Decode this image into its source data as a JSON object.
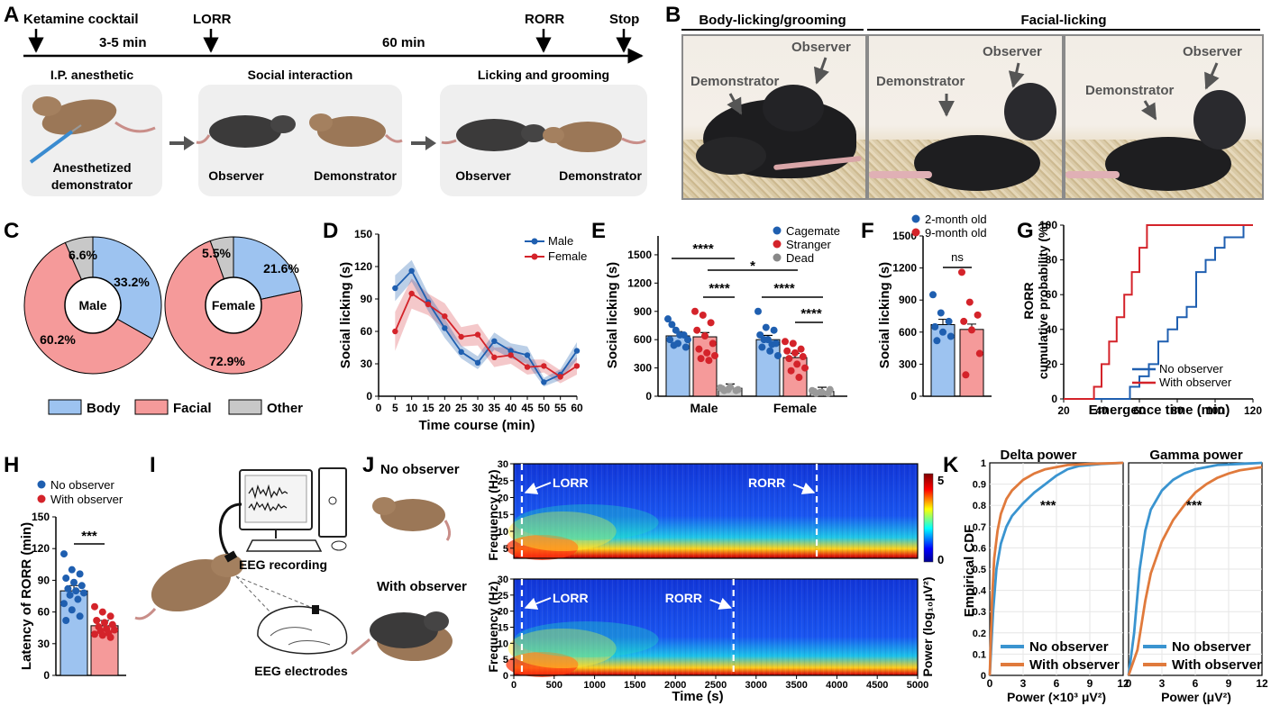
{
  "panels": {
    "A": {
      "letter": "A",
      "events": [
        "Ketamine cocktail",
        "LORR",
        "RORR",
        "Stop"
      ],
      "durations": [
        "3-5 min",
        "60 min"
      ],
      "boxes": [
        {
          "title": "I.P. anesthetic",
          "captions": [
            "Anesthetized",
            "demonstrator"
          ]
        },
        {
          "title": "Social interaction",
          "captions": [
            "Observer",
            "Demonstrator"
          ]
        },
        {
          "title": "Licking and grooming",
          "captions": [
            "Observer",
            "Demonstrator"
          ]
        }
      ]
    },
    "B": {
      "letter": "B",
      "headers": [
        "Body-licking/grooming",
        "Facial-licking"
      ],
      "labels": [
        "Demonstrator",
        "Observer"
      ]
    },
    "C": {
      "letter": "C",
      "donuts": [
        {
          "center": "Male",
          "pct": [
            "33.2%",
            "60.2%",
            "6.6%"
          ]
        },
        {
          "center": "Female",
          "pct": [
            "21.6%",
            "72.9%",
            "5.5%"
          ]
        }
      ],
      "legend": [
        "Body",
        "Facial",
        "Other"
      ]
    },
    "D": {
      "letter": "D",
      "ylabel": "Social licking (s)",
      "xlabel": "Time course (min)",
      "legend": [
        "Male",
        "Female"
      ]
    },
    "E": {
      "letter": "E",
      "ylabel": "Social licking (s)",
      "groups": [
        "Male",
        "Female"
      ],
      "legend": [
        "Cagemate",
        "Stranger",
        "Dead"
      ],
      "sig": [
        "****",
        "****",
        "*",
        "****",
        "****"
      ]
    },
    "F": {
      "letter": "F",
      "ylabel": "Social licking (s)",
      "legend": [
        "2-month old",
        "9-month old"
      ],
      "sig": "ns"
    },
    "G": {
      "letter": "G",
      "ylabel": [
        "RORR",
        "cumulative probability (%)"
      ],
      "xlabel": "Emergence time (min)",
      "legend": [
        "No observer",
        "With observer"
      ]
    },
    "H": {
      "letter": "H",
      "ylabel": "Latency of RORR (min)",
      "legend": [
        "No observer",
        "With observer"
      ],
      "sig": "***"
    },
    "I": {
      "letter": "I",
      "labels": [
        "EEG recording",
        "EEG electrodes"
      ]
    },
    "J": {
      "letter": "J",
      "rows": [
        "No observer",
        "With observer"
      ],
      "ylabel": "Frequency (Hz)",
      "xlabel": "Time (s)",
      "cbar_label": "Power (log₁₀μV²)",
      "cbar_ticks": [
        "5",
        "0"
      ],
      "markers": [
        "LORR",
        "RORR"
      ]
    },
    "K": {
      "letter": "K",
      "titles": [
        "Delta power",
        "Gamma power"
      ],
      "ylabel": "Empirical CDF",
      "xlabels": [
        "Power (×10³ μV²)",
        "Power (μV²)"
      ],
      "legend": [
        "No observer",
        "With observer"
      ],
      "sig": "***"
    }
  },
  "colors": {
    "blue": "#1f5fb0",
    "red": "#d4232a",
    "lightblue": "#9dc3f0",
    "lightred": "#f59a9a",
    "grey": "#c8c8c8",
    "k_blue": "#3a94d0",
    "k_orange": "#e07a3c"
  },
  "chart_data": [
    {
      "panel": "C",
      "type": "pie",
      "title": "Male",
      "categories": [
        "Body",
        "Facial",
        "Other"
      ],
      "values": [
        33.2,
        60.2,
        6.6
      ]
    },
    {
      "panel": "C",
      "type": "pie",
      "title": "Female",
      "categories": [
        "Body",
        "Facial",
        "Other"
      ],
      "values": [
        21.6,
        72.9,
        5.5
      ]
    },
    {
      "panel": "D",
      "type": "line",
      "xlabel": "Time course (min)",
      "ylabel": "Social licking (s)",
      "x": [
        5,
        10,
        15,
        20,
        25,
        30,
        35,
        40,
        45,
        50,
        55,
        60
      ],
      "ylim": [
        0,
        150
      ],
      "xticks": [
        "0",
        "5",
        "10",
        "15",
        "20",
        "25",
        "30",
        "35",
        "40",
        "45",
        "50",
        "55",
        "60"
      ],
      "yticks": [
        "0",
        "30",
        "60",
        "90",
        "120",
        "150"
      ],
      "series": [
        {
          "name": "Male",
          "values": [
            100,
            116,
            87,
            63,
            41,
            31,
            51,
            42,
            38,
            13,
            20,
            42
          ]
        },
        {
          "name": "Female",
          "values": [
            60,
            95,
            85,
            74,
            55,
            57,
            36,
            38,
            27,
            28,
            18,
            28
          ]
        }
      ]
    },
    {
      "panel": "E",
      "type": "bar",
      "ylabel": "Social licking (s)",
      "categories": [
        "Male",
        "Female"
      ],
      "ylim": [
        0,
        1700
      ],
      "yticks": [
        "0",
        "300",
        "600",
        "900",
        "1200",
        "1500"
      ],
      "series": [
        {
          "name": "Cagemate",
          "values": [
            640,
            600
          ]
        },
        {
          "name": "Stranger",
          "values": [
            630,
            410
          ]
        },
        {
          "name": "Dead",
          "values": [
            85,
            50
          ]
        }
      ]
    },
    {
      "panel": "F",
      "type": "bar",
      "ylabel": "Social licking (s)",
      "categories": [
        "2-month old",
        "9-month old"
      ],
      "ylim": [
        0,
        1500
      ],
      "yticks": [
        "0",
        "300",
        "600",
        "900",
        "1200",
        "1500"
      ],
      "values": [
        670,
        625
      ]
    },
    {
      "panel": "G",
      "type": "line",
      "xlabel": "Emergence time (min)",
      "ylabel": "RORR cumulative probability (%)",
      "xlim": [
        20,
        120
      ],
      "ylim": [
        0,
        100
      ],
      "xticks": [
        "20",
        "40",
        "60",
        "80",
        "100",
        "120"
      ],
      "yticks": [
        "0",
        "20",
        "40",
        "60",
        "80",
        "100"
      ],
      "series": [
        {
          "name": "No observer",
          "x": [
            20,
            50,
            55,
            60,
            65,
            70,
            75,
            80,
            85,
            90,
            95,
            100,
            105,
            110,
            115,
            120
          ],
          "values": [
            0,
            0,
            7,
            13,
            20,
            33,
            40,
            47,
            53,
            73,
            80,
            87,
            93,
            93,
            100,
            100
          ]
        },
        {
          "name": "With observer",
          "x": [
            20,
            36,
            40,
            44,
            48,
            52,
            56,
            60,
            64,
            120
          ],
          "values": [
            0,
            7,
            20,
            33,
            47,
            60,
            73,
            87,
            100,
            100
          ]
        }
      ]
    },
    {
      "panel": "H",
      "type": "bar",
      "ylabel": "Latency of RORR (min)",
      "categories": [
        "No observer",
        "With observer"
      ],
      "ylim": [
        0,
        150
      ],
      "yticks": [
        "0",
        "30",
        "60",
        "90",
        "120",
        "150"
      ],
      "values": [
        80,
        47
      ]
    },
    {
      "panel": "J",
      "type": "heatmap",
      "xlabel": "Time (s)",
      "ylabel": "Frequency (Hz)",
      "xlim": [
        0,
        5000
      ],
      "ylim": [
        0,
        30
      ],
      "xticks": [
        "0",
        "500",
        "1000",
        "1500",
        "2000",
        "2500",
        "3000",
        "3500",
        "4000",
        "4500",
        "5000"
      ],
      "yticks": [
        "5",
        "10",
        "15",
        "20",
        "25",
        "30"
      ],
      "yticks_bottom": [
        "0",
        "5",
        "10",
        "15",
        "20",
        "25",
        "30"
      ],
      "colorbar": [
        0,
        5
      ],
      "rows": [
        {
          "name": "No observer",
          "LORR": 100,
          "RORR": 3750
        },
        {
          "name": "With observer",
          "LORR": 100,
          "RORR": 2720
        }
      ]
    },
    {
      "panel": "K",
      "type": "line",
      "title": "Delta power",
      "xlabel": "Power (×10³ μV²)",
      "ylabel": "Empirical CDF",
      "xlim": [
        0,
        12
      ],
      "ylim": [
        0,
        1
      ],
      "xticks": [
        "0",
        "3",
        "6",
        "9",
        "12"
      ],
      "yticks": [
        "0",
        "0.1",
        "0.2",
        "0.3",
        "0.4",
        "0.5",
        "0.6",
        "0.7",
        "0.8",
        "0.9",
        "1"
      ],
      "series": [
        {
          "name": "No observer",
          "x": [
            0,
            0.3,
            0.6,
            1,
            1.5,
            2,
            3,
            4,
            5,
            6,
            7,
            8,
            9,
            10,
            12
          ],
          "values": [
            0,
            0.3,
            0.5,
            0.62,
            0.7,
            0.75,
            0.81,
            0.86,
            0.9,
            0.94,
            0.97,
            0.985,
            0.99,
            0.995,
            1
          ]
        },
        {
          "name": "With observer",
          "x": [
            0,
            0.2,
            0.4,
            0.7,
            1,
            1.5,
            2,
            3,
            4,
            5,
            6,
            7,
            9,
            12
          ],
          "values": [
            0,
            0.35,
            0.55,
            0.68,
            0.76,
            0.83,
            0.87,
            0.92,
            0.95,
            0.97,
            0.98,
            0.99,
            0.995,
            1
          ]
        }
      ]
    },
    {
      "panel": "K",
      "type": "line",
      "title": "Gamma power",
      "xlabel": "Power (μV²)",
      "ylabel": "Empirical CDF",
      "xlim": [
        0,
        12
      ],
      "ylim": [
        0,
        1
      ],
      "xticks": [
        "0",
        "3",
        "6",
        "9",
        "12"
      ],
      "series": [
        {
          "name": "No observer",
          "x": [
            0,
            0.5,
            1,
            1.5,
            2,
            3,
            4,
            5,
            6,
            7,
            8,
            10,
            12
          ],
          "values": [
            0,
            0.2,
            0.5,
            0.68,
            0.78,
            0.87,
            0.92,
            0.95,
            0.97,
            0.98,
            0.99,
            0.995,
            1
          ]
        },
        {
          "name": "With observer",
          "x": [
            0,
            0.8,
            1.5,
            2,
            3,
            4,
            5,
            6,
            7,
            8,
            9,
            10,
            12
          ],
          "values": [
            0,
            0.12,
            0.35,
            0.48,
            0.63,
            0.73,
            0.8,
            0.86,
            0.9,
            0.93,
            0.95,
            0.965,
            0.98
          ]
        }
      ]
    }
  ]
}
